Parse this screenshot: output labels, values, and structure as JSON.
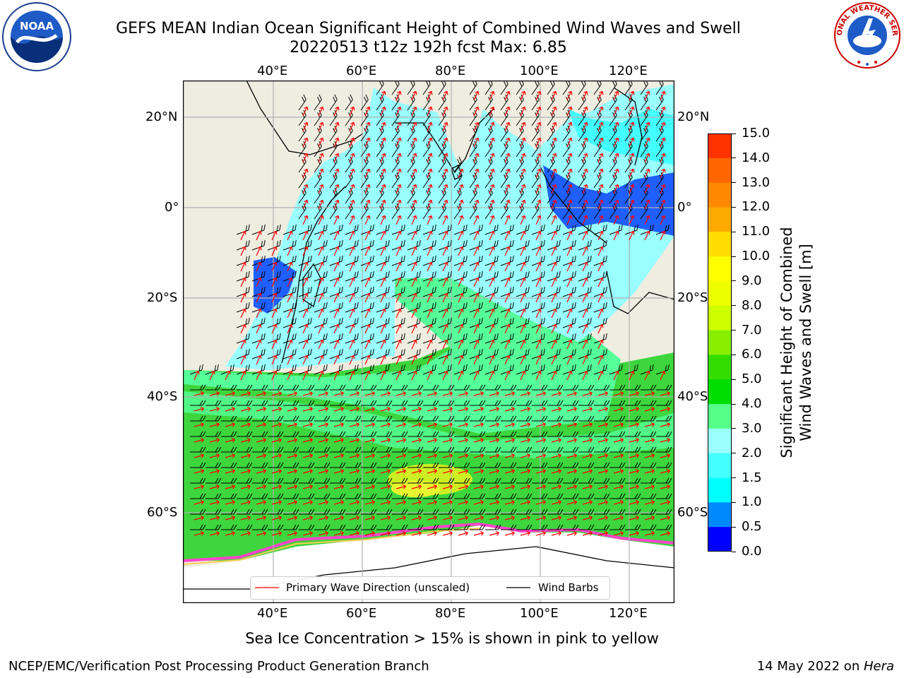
{
  "header": {
    "title_line1": "GEFS MEAN Indian Ocean Significant Height of Combined Wind Waves and Swell",
    "title_line2": "20220513 t12z 192h fcst   Max: 6.85"
  },
  "logos": {
    "noaa_text": "NOAA",
    "nws_text": "NATIONAL WEATHER SERVICE"
  },
  "map": {
    "lon_ticks": [
      "40°E",
      "60°E",
      "80°E",
      "100°E",
      "120°E"
    ],
    "lat_ticks": [
      "20°N",
      "0°",
      "20°S",
      "40°S",
      "60°S"
    ],
    "colors": {
      "land": "#efede0",
      "ocean_light": "#99ffff",
      "ocean_mid": "#55ff99",
      "ocean_green": "#3dd63d",
      "ocean_yellow": "#ccee22",
      "shallow_blue": "#1f5fff",
      "ice": "#ffffff",
      "ice_edge": "#ff44cc",
      "wave_arrow": "#ff0000",
      "wind_barb": "#000000"
    }
  },
  "legend": {
    "wave_label": "Primary Wave Direction (unscaled)",
    "wind_label": "Wind Barbs"
  },
  "colorbar": {
    "title_line1": "Significant Height of Combined",
    "title_line2": "Wind Waves and Swell [m]",
    "ticks": [
      "15.0",
      "14.0",
      "13.0",
      "12.0",
      "11.0",
      "10.0",
      "9.0",
      "8.0",
      "7.0",
      "6.0",
      "5.0",
      "4.0",
      "3.0",
      "2.0",
      "1.5",
      "1.0",
      "0.5",
      "0.0"
    ],
    "colors": [
      "#ff0000",
      "#ff3300",
      "#ff6600",
      "#ff8800",
      "#ffaa00",
      "#ffdd00",
      "#ffff00",
      "#eeff00",
      "#ccff00",
      "#88ee00",
      "#33dd00",
      "#00dd00",
      "#55ff88",
      "#99ffff",
      "#44ffff",
      "#00ffff",
      "#0088ff",
      "#0000ff"
    ]
  },
  "captions": {
    "sea_ice_note": "Sea Ice Concentration > 15% is shown in pink to yellow",
    "branch": "NCEP/EMC/Verification Post Processing Product Generation Branch",
    "date": "14 May 2022 on ",
    "host": "Hera"
  }
}
